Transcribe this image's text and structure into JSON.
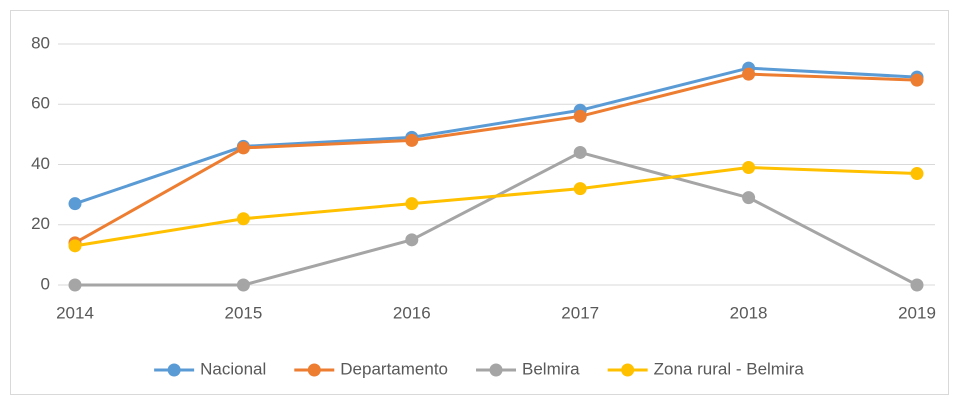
{
  "chart_data": {
    "type": "line",
    "categories": [
      "2014",
      "2015",
      "2016",
      "2017",
      "2018",
      "2019"
    ],
    "series": [
      {
        "name": "Nacional",
        "color": "#5b9bd5",
        "values": [
          27,
          46,
          49,
          58,
          72,
          69
        ]
      },
      {
        "name": "Departamento",
        "color": "#ed7d31",
        "values": [
          14,
          45.5,
          48,
          56,
          70,
          68
        ]
      },
      {
        "name": "Belmira",
        "color": "#a5a5a5",
        "values": [
          0,
          0,
          15,
          44,
          29,
          0
        ]
      },
      {
        "name": "Zona rural - Belmira",
        "color": "#ffc000",
        "values": [
          13,
          22,
          27,
          32,
          39,
          37
        ]
      }
    ],
    "ylim": [
      0,
      80
    ],
    "yticks": [
      0,
      20,
      40,
      60,
      80
    ],
    "grid": true,
    "legend": "bottom"
  }
}
